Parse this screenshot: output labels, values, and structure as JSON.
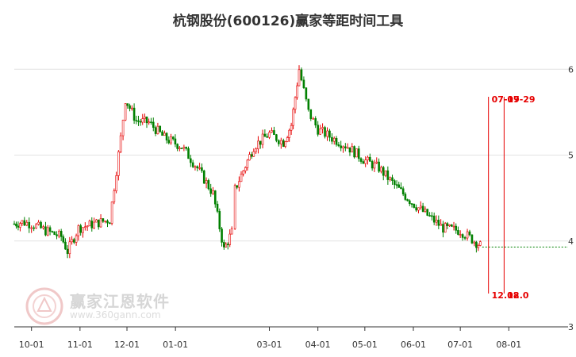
{
  "chart_data": {
    "type": "candlestick",
    "title": "杭钢股份(600126)赢家等距时间工具",
    "xlabel": "",
    "ylabel": "",
    "x_ticks": [
      "10-01",
      "11-01",
      "12-01",
      "01-01",
      "03-01",
      "04-01",
      "05-01",
      "06-01",
      "07-01",
      "08-01"
    ],
    "y_ticks": [
      "3",
      "4",
      "5",
      "6"
    ],
    "ylim": [
      3,
      6.4
    ],
    "grid": true,
    "up_color": "#e60000",
    "down_color": "#008000",
    "x": [
      "2023-09-20",
      "2023-09-25",
      "2023-10-01",
      "2023-10-10",
      "2023-10-20",
      "2023-10-24",
      "2023-10-31",
      "2023-11-10",
      "2023-11-20",
      "2023-11-27",
      "2023-11-30",
      "2023-12-07",
      "2023-12-15",
      "2023-12-25",
      "2024-01-05",
      "2024-01-15",
      "2024-01-25",
      "2024-02-01",
      "2024-02-06",
      "2024-02-08",
      "2024-02-20",
      "2024-03-01",
      "2024-03-10",
      "2024-03-15",
      "2024-03-20",
      "2024-03-26",
      "2024-04-01",
      "2024-04-10",
      "2024-04-20",
      "2024-04-30",
      "2024-05-10",
      "2024-05-20",
      "2024-05-31",
      "2024-06-10",
      "2024-06-20",
      "2024-07-01",
      "2024-07-10",
      "2024-07-15"
    ],
    "series": [
      {
        "values": [
          4.2,
          4.22,
          4.2,
          4.12,
          4.05,
          3.88,
          4.15,
          4.2,
          4.25,
          5.2,
          5.65,
          5.4,
          5.38,
          5.2,
          5.1,
          4.85,
          4.55,
          3.9,
          4.1,
          4.6,
          5.1,
          5.25,
          5.15,
          5.35,
          6.0,
          5.5,
          5.3,
          5.2,
          5.1,
          4.95,
          4.85,
          4.65,
          4.45,
          4.3,
          4.15,
          4.12,
          4.0,
          3.93
        ]
      }
    ],
    "annotations": [
      {
        "label": "07-19",
        "value": "12.08",
        "color": "#e60000"
      },
      {
        "label": "07-29",
        "value": "12.0",
        "color": "#e60000"
      }
    ],
    "watermark": {
      "name": "赢家江恩软件",
      "url": "www.360gann.com"
    }
  }
}
